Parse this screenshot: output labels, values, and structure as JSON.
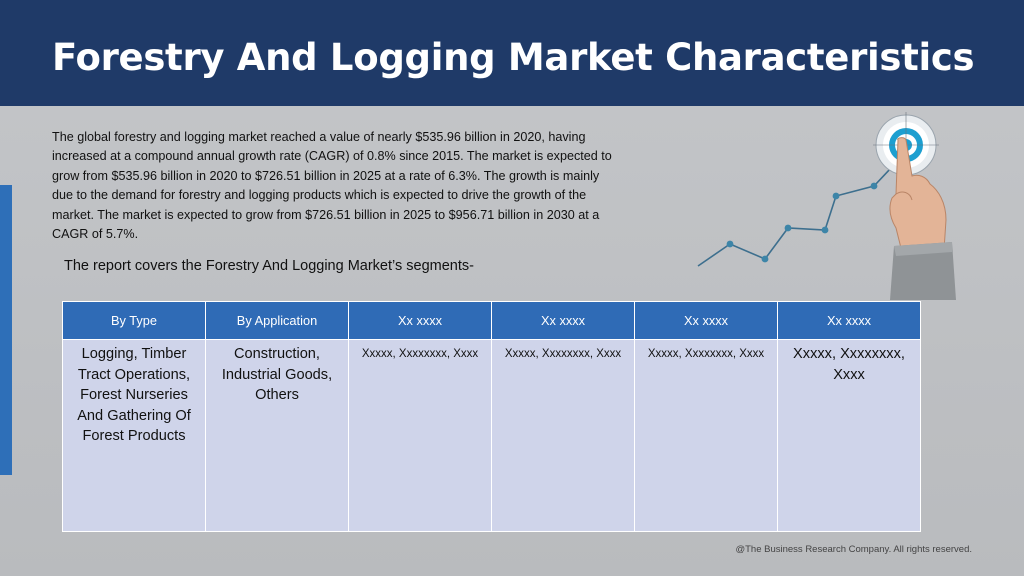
{
  "header": {
    "title": "Forestry And Logging Market Characteristics"
  },
  "intro": {
    "text": "The global forestry and logging market reached a value of nearly $535.96 billion in 2020, having increased at a compound annual growth rate (CAGR) of 0.8% since 2015.  The market is expected to grow from $535.96 billion in 2020 to $726.51 billion in 2025 at a rate of 6.3%. The growth is mainly due to the demand for forestry and logging products which is expected to drive the growth of the market. The market is expected to grow from $726.51 billion in 2025 to $956.71 billion in 2030 at a CAGR of 5.7%."
  },
  "segments_line": "The report covers the Forestry And Logging Market’s segments-",
  "table": {
    "headers": [
      "By Type",
      "By Application",
      "Xx xxxx",
      "Xx xxxx",
      "Xx xxxx",
      "Xx xxxx"
    ],
    "cells": [
      "Logging, Timber Tract Operations, Forest Nurseries And Gathering Of Forest Products",
      "Construction, Industrial Goods, Others",
      "Xxxxx, Xxxxxxxx, Xxxx",
      "Xxxxx, Xxxxxxxx, Xxxx",
      "Xxxxx, Xxxxxxxx, Xxxx",
      "Xxxxx, Xxxxxxxx, Xxxx"
    ]
  },
  "graphic": {
    "icon": "growth-chart-target-hand-icon",
    "line_color": "#3d6f8e",
    "target_color": "#1d9fd0"
  },
  "footer": "@The Business Research Company. All rights reserved."
}
